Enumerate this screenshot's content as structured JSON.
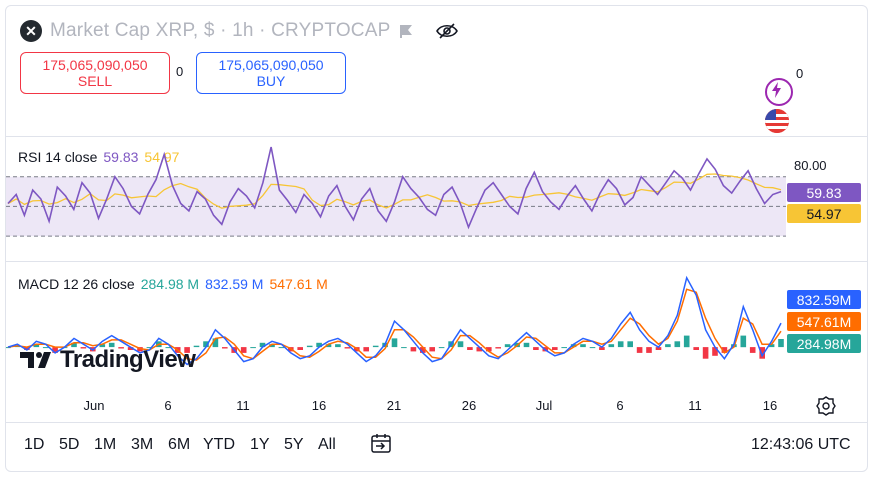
{
  "header": {
    "title": "Market Cap XRP, $ · 1h · CRYPTOCAP",
    "logo_glyph": "✕"
  },
  "trade": {
    "sell_price": "175,065,090,050",
    "sell_label": "SELL",
    "buy_price": "175,065,090,050",
    "buy_label": "BUY",
    "spread": "0"
  },
  "main_pane": {
    "axis_zero": "0"
  },
  "colors": {
    "rsi_line": "#7e57c2",
    "rsi_ma": "#f7c535",
    "rsi_band": "#ede7f6",
    "macd_line": "#2962ff",
    "signal_line": "#ff6d00",
    "hist_up": "#26a69a",
    "hist_down": "#f23645"
  },
  "rsi": {
    "label": "RSI 14 close",
    "value": "59.83",
    "ma_value": "54.97",
    "upper_level": "80.00"
  },
  "macd": {
    "label": "MACD 12 26 close",
    "hist": "284.98 M",
    "macd": "832.59 M",
    "signal": "547.61 M",
    "tag_macd": "832.59M",
    "tag_signal": "547.61M",
    "tag_hist": "284.98M"
  },
  "chart_data": {
    "type": "line",
    "x_ticks": [
      "Jun",
      "6",
      "11",
      "16",
      "21",
      "26",
      "Jul",
      "6",
      "11",
      "16"
    ],
    "rsi_values": [
      52,
      58,
      44,
      61,
      55,
      40,
      63,
      57,
      48,
      66,
      59,
      42,
      55,
      70,
      62,
      50,
      45,
      58,
      68,
      85,
      64,
      52,
      47,
      60,
      55,
      44,
      38,
      53,
      62,
      57,
      49,
      66,
      90,
      61,
      54,
      46,
      58,
      52,
      43,
      57,
      64,
      50,
      41,
      55,
      62,
      47,
      40,
      53,
      70,
      62,
      56,
      48,
      44,
      58,
      63,
      52,
      36,
      49,
      61,
      66,
      58,
      50,
      45,
      62,
      73,
      60,
      53,
      48,
      57,
      64,
      55,
      47,
      59,
      68,
      62,
      51,
      56,
      70,
      64,
      58,
      66,
      74,
      69,
      61,
      72,
      82,
      75,
      64,
      59,
      67,
      74,
      62,
      52,
      58,
      60
    ],
    "macd_values": [
      0.0,
      0.1,
      -0.1,
      0.2,
      0.1,
      -0.2,
      0.0,
      0.3,
      0.1,
      -0.1,
      0.2,
      0.4,
      0.2,
      0.0,
      -0.2,
      -0.1,
      0.3,
      0.1,
      -0.3,
      -0.6,
      -0.4,
      0.0,
      0.6,
      0.3,
      -0.1,
      -0.5,
      -0.4,
      0.0,
      0.2,
      0.1,
      -0.2,
      -0.4,
      -0.3,
      0.0,
      0.2,
      0.3,
      0.1,
      -0.2,
      -0.5,
      -0.3,
      0.1,
      0.9,
      0.6,
      0.2,
      -0.2,
      -0.5,
      -0.4,
      0.1,
      0.6,
      0.3,
      0.0,
      -0.3,
      -0.4,
      -0.1,
      0.2,
      0.5,
      0.2,
      -0.1,
      -0.3,
      -0.2,
      0.1,
      0.3,
      0.2,
      0.0,
      0.3,
      0.8,
      1.2,
      0.6,
      0.2,
      0.0,
      0.4,
      1.1,
      2.4,
      1.8,
      0.6,
      0.0,
      -0.4,
      0.1,
      1.4,
      0.6,
      -0.3,
      0.2,
      0.83
    ],
    "signal_values": [
      0.0,
      0.05,
      0.0,
      0.1,
      0.1,
      0.0,
      0.0,
      0.15,
      0.15,
      0.05,
      0.1,
      0.25,
      0.25,
      0.1,
      -0.05,
      -0.1,
      0.1,
      0.1,
      -0.1,
      -0.4,
      -0.45,
      -0.2,
      0.3,
      0.35,
      0.1,
      -0.3,
      -0.4,
      -0.15,
      0.1,
      0.1,
      -0.05,
      -0.3,
      -0.35,
      -0.15,
      0.1,
      0.2,
      0.15,
      -0.05,
      -0.35,
      -0.35,
      -0.05,
      0.6,
      0.6,
      0.35,
      0.0,
      -0.35,
      -0.4,
      -0.1,
      0.4,
      0.4,
      0.15,
      -0.15,
      -0.35,
      -0.2,
      0.05,
      0.35,
      0.3,
      0.05,
      -0.2,
      -0.2,
      0.0,
      0.2,
      0.2,
      0.1,
      0.2,
      0.6,
      1.0,
      0.8,
      0.4,
      0.1,
      0.3,
      0.9,
      2.0,
      1.9,
      1.0,
      0.3,
      -0.2,
      0.0,
      1.0,
      0.8,
      0.1,
      0.1,
      0.55
    ],
    "rsi_range": [
      20,
      90
    ],
    "macd_range": [
      -1.0,
      2.6
    ]
  },
  "toolbar": {
    "ranges": [
      "1D",
      "5D",
      "1M",
      "3M",
      "6M",
      "YTD",
      "1Y",
      "5Y",
      "All"
    ],
    "time": "12:43:06 UTC"
  },
  "brand": {
    "name": "TradingView"
  }
}
